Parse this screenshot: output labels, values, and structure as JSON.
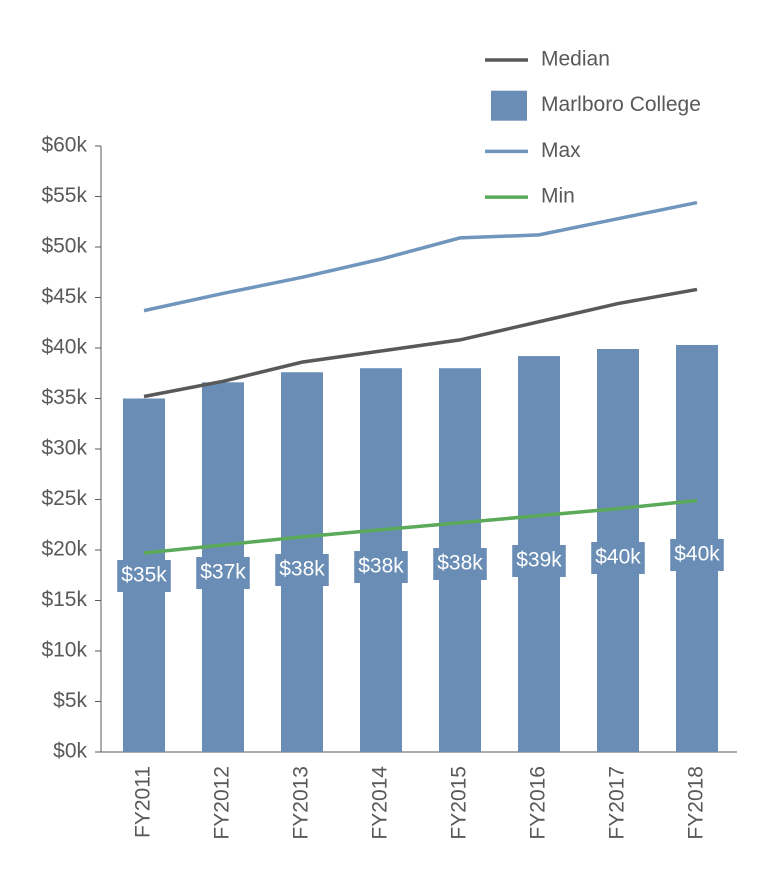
{
  "chart_data": {
    "type": "bar",
    "categories": [
      "FY2011",
      "FY2012",
      "FY2013",
      "FY2014",
      "FY2015",
      "FY2016",
      "FY2017",
      "FY2018"
    ],
    "series": [
      {
        "name": "Median",
        "type": "line",
        "color": "#595959",
        "values": [
          35.2,
          36.7,
          38.6,
          39.7,
          40.8,
          42.6,
          44.4,
          45.8
        ]
      },
      {
        "name": "Marlboro College",
        "type": "bar",
        "color": "#6a8db5",
        "values": [
          35.0,
          36.6,
          37.6,
          38.0,
          38.0,
          39.2,
          39.9,
          40.3
        ],
        "value_labels": [
          "$35k",
          "$37k",
          "$38k",
          "$38k",
          "$38k",
          "$39k",
          "$40k",
          "$40k"
        ]
      },
      {
        "name": "Max",
        "type": "line",
        "color": "#7096be",
        "values": [
          43.7,
          45.4,
          47.0,
          48.8,
          50.9,
          51.2,
          52.8,
          54.4
        ]
      },
      {
        "name": "Min",
        "type": "line",
        "color": "#5aaa5a",
        "values": [
          19.7,
          20.5,
          21.3,
          22.0,
          22.7,
          23.4,
          24.1,
          24.9
        ]
      }
    ],
    "ylim": [
      0,
      60
    ],
    "yticks": [
      {
        "value": 0,
        "label": "$0k"
      },
      {
        "value": 5,
        "label": "$5k"
      },
      {
        "value": 10,
        "label": "$10k"
      },
      {
        "value": 15,
        "label": "$15k"
      },
      {
        "value": 20,
        "label": "$20k"
      },
      {
        "value": 25,
        "label": "$25k"
      },
      {
        "value": 30,
        "label": "$30k"
      },
      {
        "value": 35,
        "label": "$35k"
      },
      {
        "value": 40,
        "label": "$40k"
      },
      {
        "value": 45,
        "label": "$45k"
      },
      {
        "value": 50,
        "label": "$50k"
      },
      {
        "value": 55,
        "label": "$55k"
      },
      {
        "value": 60,
        "label": "$60k"
      }
    ],
    "grid": false,
    "legend": "top-right"
  }
}
